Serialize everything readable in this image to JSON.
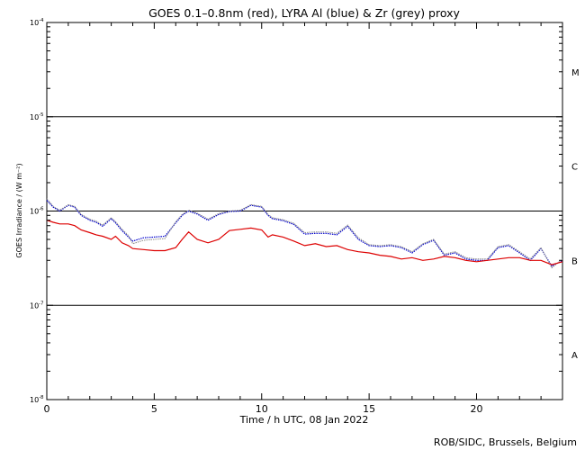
{
  "chart_data": {
    "type": "line",
    "title": "GOES 0.1–0.8nm (red), LYRA Al (blue) & Zr (grey) proxy",
    "xlabel": "Time / h UTC, 08 Jan 2022",
    "ylabel": "GOES Irradiance / (W m⁻²)",
    "xlim": [
      0,
      24
    ],
    "xticks": [
      0,
      5,
      10,
      15,
      20
    ],
    "xtick_labels": [
      "0",
      "5",
      "10",
      "15",
      "20"
    ],
    "yscale": "log",
    "ylim": [
      1e-08,
      0.0001
    ],
    "ytick_labels": [
      {
        "exp": -8,
        "label": "10",
        "sup": "-8"
      },
      {
        "exp": -7,
        "label": "10",
        "sup": "-7"
      },
      {
        "exp": -6,
        "label": "10",
        "sup": "-6"
      },
      {
        "exp": -5,
        "label": "10",
        "sup": "-5"
      },
      {
        "exp": -4,
        "label": "10",
        "sup": "-4"
      }
    ],
    "flare_class_lines": [
      1e-07,
      1e-06,
      1e-05
    ],
    "flare_classes": [
      {
        "label": "A",
        "at": 3e-08
      },
      {
        "label": "B",
        "at": 3e-07
      },
      {
        "label": "C",
        "at": 3e-06
      },
      {
        "label": "M",
        "at": 3e-05
      }
    ],
    "grid": false,
    "series": [
      {
        "color": "#dd0000",
        "x": [
          0.0,
          0.3,
          0.6,
          1.0,
          1.3,
          1.6,
          2.0,
          2.3,
          2.6,
          3.0,
          3.2,
          3.5,
          3.8,
          4.0,
          4.5,
          5.0,
          5.5,
          6.0,
          6.3,
          6.6,
          7.0,
          7.5,
          8.0,
          8.5,
          9.0,
          9.5,
          10.0,
          10.3,
          10.5,
          11.0,
          11.5,
          12.0,
          12.5,
          13.0,
          13.5,
          14.0,
          14.5,
          15.0,
          15.5,
          16.0,
          16.5,
          17.0,
          17.5,
          18.0,
          18.5,
          19.0,
          19.5,
          20.0,
          20.5,
          21.0,
          21.5,
          22.0,
          22.5,
          23.0,
          23.5,
          24.0
        ],
        "y": [
          8e-07,
          7.6e-07,
          7.3e-07,
          7.3e-07,
          7e-07,
          6.3e-07,
          5.9e-07,
          5.6e-07,
          5.4e-07,
          5e-07,
          5.4e-07,
          4.6e-07,
          4.3e-07,
          4e-07,
          3.9e-07,
          3.8e-07,
          3.8e-07,
          4.1e-07,
          5e-07,
          6e-07,
          5e-07,
          4.6e-07,
          5e-07,
          6.2e-07,
          6.4e-07,
          6.6e-07,
          6.3e-07,
          5.3e-07,
          5.6e-07,
          5.3e-07,
          4.8e-07,
          4.3e-07,
          4.5e-07,
          4.2e-07,
          4.3e-07,
          3.9e-07,
          3.7e-07,
          3.6e-07,
          3.4e-07,
          3.3e-07,
          3.1e-07,
          3.2e-07,
          3e-07,
          3.1e-07,
          3.3e-07,
          3.2e-07,
          3e-07,
          2.9e-07,
          3e-07,
          3.1e-07,
          3.2e-07,
          3.2e-07,
          3e-07,
          3e-07,
          2.7e-07,
          2.9e-07
        ]
      },
      {
        "color": "#0000cc",
        "x": [
          0.0,
          0.3,
          0.6,
          1.0,
          1.3,
          1.6,
          2.0,
          2.3,
          2.6,
          3.0,
          3.2,
          3.5,
          3.8,
          4.0,
          4.5,
          5.0,
          5.5,
          6.0,
          6.3,
          6.6,
          7.0,
          7.5,
          8.0,
          8.5,
          9.0,
          9.5,
          10.0,
          10.3,
          10.5,
          11.0,
          11.5,
          12.0,
          12.5,
          13.0,
          13.5,
          14.0,
          14.5,
          15.0,
          15.5,
          16.0,
          16.5,
          17.0,
          17.5,
          18.0,
          18.5,
          19.0,
          19.5,
          20.0,
          20.5,
          21.0,
          21.5,
          22.0,
          22.5,
          23.0,
          23.5,
          24.0
        ],
        "y": [
          1.3e-06,
          1.1e-06,
          1e-06,
          1.15e-06,
          1.1e-06,
          9e-07,
          8e-07,
          7.6e-07,
          6.9e-07,
          8.3e-07,
          7.5e-07,
          6.2e-07,
          5.3e-07,
          4.8e-07,
          5.2e-07,
          5.3e-07,
          5.4e-07,
          7.5e-07,
          9e-07,
          1e-06,
          9.3e-07,
          8e-07,
          9.2e-07,
          9.9e-07,
          1e-06,
          1.15e-06,
          1.1e-06,
          9e-07,
          8.3e-07,
          7.9e-07,
          7.2e-07,
          5.7e-07,
          5.8e-07,
          5.8e-07,
          5.6e-07,
          6.9e-07,
          5e-07,
          4.3e-07,
          4.2e-07,
          4.3e-07,
          4.1e-07,
          3.6e-07,
          4.4e-07,
          4.9e-07,
          3.4e-07,
          3.6e-07,
          3.1e-07,
          3e-07,
          3e-07,
          4.1e-07,
          4.3e-07,
          3.6e-07,
          3e-07,
          4e-07,
          2.6e-07,
          3e-07
        ]
      },
      {
        "color": "#888888",
        "x": [
          0.0,
          0.3,
          0.6,
          1.0,
          1.3,
          1.6,
          2.0,
          2.3,
          2.6,
          3.0,
          3.2,
          3.5,
          3.8,
          4.0,
          4.5,
          5.0,
          5.5,
          6.0,
          6.3,
          6.6,
          7.0,
          7.5,
          8.0,
          8.5,
          9.0,
          9.5,
          10.0,
          10.3,
          10.5,
          11.0,
          11.5,
          12.0,
          12.5,
          13.0,
          13.5,
          14.0,
          14.5,
          15.0,
          15.5,
          16.0,
          16.5,
          17.0,
          17.5,
          18.0,
          18.5,
          19.0,
          19.5,
          20.0,
          20.5,
          21.0,
          21.5,
          22.0,
          22.5,
          23.0,
          23.5,
          24.0
        ],
        "y": [
          1.35e-06,
          1.12e-06,
          1.02e-06,
          1.17e-06,
          1.12e-06,
          9.2e-07,
          8.2e-07,
          7.8e-07,
          7.1e-07,
          8.5e-07,
          7.7e-07,
          6.4e-07,
          5.5e-07,
          4.5e-07,
          4.9e-07,
          5e-07,
          5.1e-07,
          7.7e-07,
          9.2e-07,
          1.02e-06,
          9.5e-07,
          8.2e-07,
          9.4e-07,
          1e-06,
          1.02e-06,
          1.17e-06,
          1.12e-06,
          9.2e-07,
          8.5e-07,
          8.1e-07,
          7.4e-07,
          5.9e-07,
          6e-07,
          6e-07,
          5.8e-07,
          7.1e-07,
          5.2e-07,
          4.4e-07,
          4.3e-07,
          4.4e-07,
          4.2e-07,
          3.7e-07,
          4.5e-07,
          5e-07,
          3.5e-07,
          3.7e-07,
          3.2e-07,
          3.1e-07,
          3.1e-07,
          4.2e-07,
          4.4e-07,
          3.7e-07,
          3.1e-07,
          4.1e-07,
          2.5e-07,
          3.1e-07
        ]
      }
    ]
  },
  "footer": {
    "credit": "ROB/SIDC, Brussels, Belgium"
  }
}
